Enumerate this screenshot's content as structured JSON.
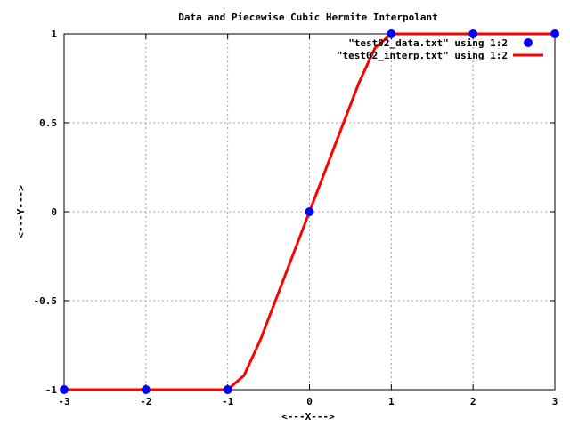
{
  "chart_data": {
    "type": "line",
    "title": "Data and Piecewise Cubic Hermite Interpolant",
    "xlabel": "<---X--->",
    "ylabel": "<---Y--->",
    "xlim": [
      -3,
      3
    ],
    "ylim": [
      -1,
      1
    ],
    "x_ticks": [
      -3,
      -2,
      -1,
      0,
      1,
      2,
      3
    ],
    "x_tick_labels": [
      "-3",
      "-2",
      "-1",
      "0",
      "1",
      "2",
      "3"
    ],
    "y_ticks": [
      -1,
      -0.5,
      0,
      0.5,
      1
    ],
    "y_tick_labels": [
      "-1",
      "-0.5",
      "0",
      "0.5",
      "1"
    ],
    "grid": true,
    "legend_position": "top-right",
    "series": [
      {
        "name": "\"test02_data.txt\" using 1:2",
        "kind": "points",
        "color": "#0000ff",
        "x": [
          -3,
          -2,
          -1,
          0,
          1,
          2,
          3
        ],
        "y": [
          -1,
          -1,
          -1,
          0,
          1,
          1,
          1
        ]
      },
      {
        "name": "\"test02_interp.txt\" using 1:2",
        "kind": "line",
        "color": "#ff0000",
        "x": [
          -3,
          -2,
          -1,
          -0.8,
          -0.6,
          -0.4,
          -0.2,
          0,
          0.2,
          0.4,
          0.6,
          0.8,
          1,
          2,
          3
        ],
        "y": [
          -1,
          -1,
          -1,
          -0.92,
          -0.72,
          -0.48,
          -0.24,
          0,
          0.24,
          0.48,
          0.72,
          0.92,
          1,
          1,
          1
        ]
      }
    ]
  }
}
